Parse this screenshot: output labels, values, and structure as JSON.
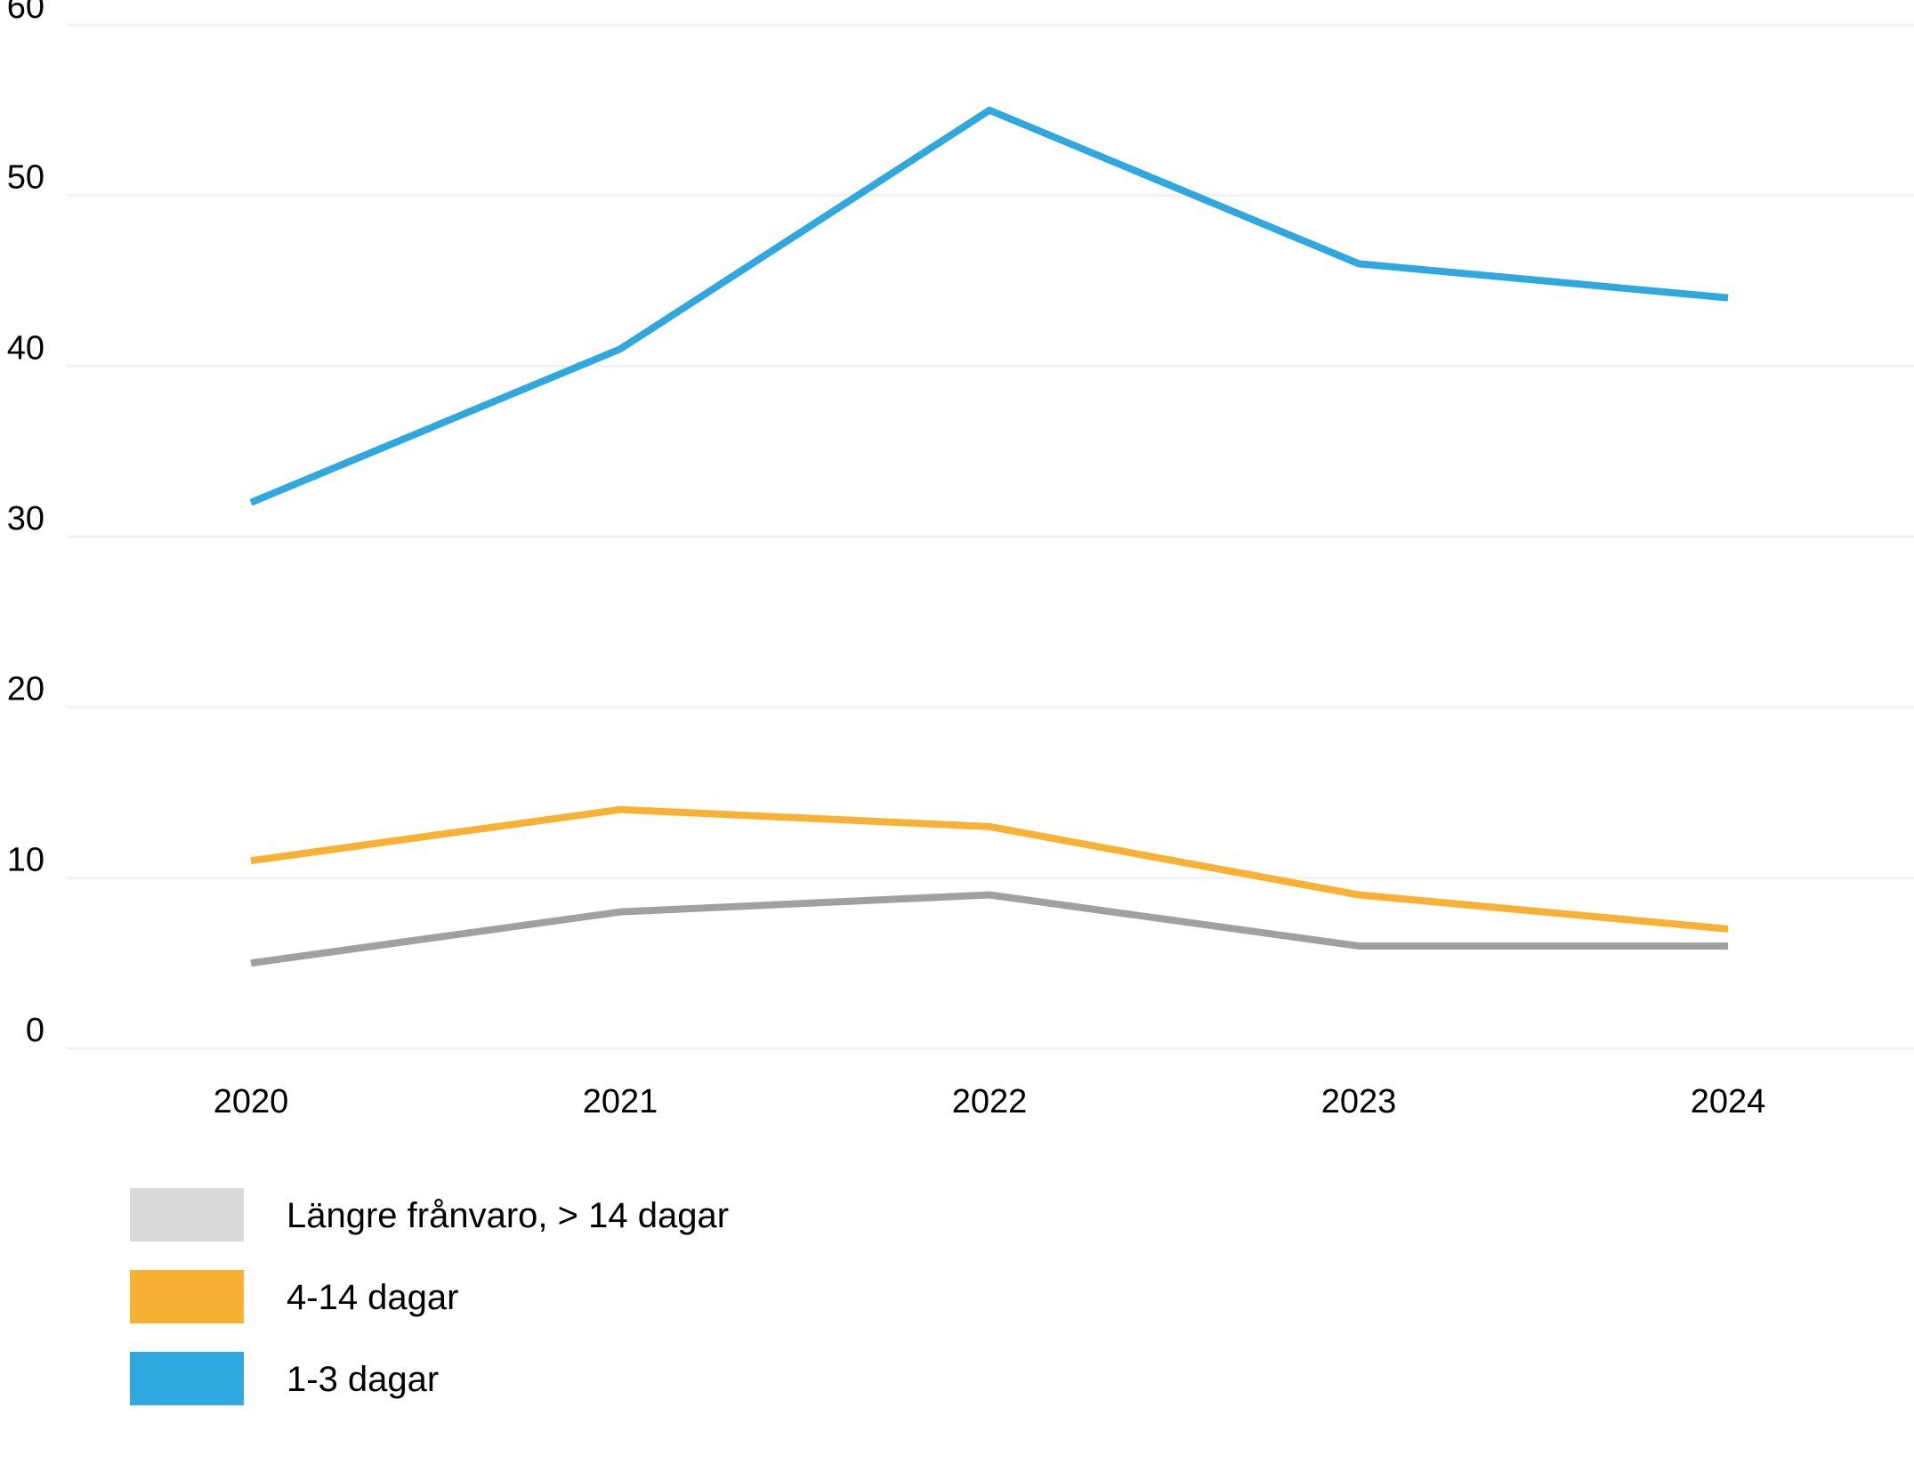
{
  "chart_data": {
    "type": "line",
    "title": "",
    "xlabel": "",
    "ylabel": "",
    "x": [
      "2020",
      "2021",
      "2022",
      "2023",
      "2024"
    ],
    "ylim": [
      0,
      60
    ],
    "yticks": [
      "0",
      "10",
      "20",
      "30",
      "40",
      "50",
      "60"
    ],
    "grid": true,
    "legend_position": "bottom-left",
    "series": [
      {
        "name": "Längre frånvaro, > 14 dagar",
        "color": "#A0A0A0",
        "legend_color": "#D9D9D9",
        "values": [
          5,
          8,
          9,
          6,
          6
        ]
      },
      {
        "name": "4-14 dagar",
        "color": "#F8B133",
        "legend_color": "#F8B133",
        "values": [
          11,
          14,
          13,
          9,
          7
        ]
      },
      {
        "name": "1-3 dagar",
        "color": "#2FA8E0",
        "legend_color": "#2FA8E0",
        "values": [
          32,
          41,
          55,
          46,
          44
        ]
      }
    ]
  }
}
